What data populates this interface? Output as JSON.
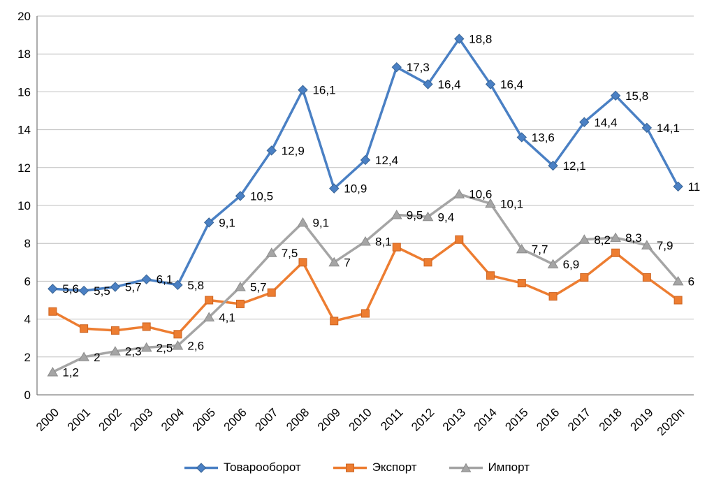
{
  "chart_data": {
    "type": "line",
    "title": "",
    "categories": [
      "2000",
      "2001",
      "2002",
      "2003",
      "2004",
      "2005",
      "2006",
      "2007",
      "2008",
      "2009",
      "2010",
      "2011",
      "2012",
      "2013",
      "2014",
      "2015",
      "2016",
      "2017",
      "2018",
      "2019",
      "2020п"
    ],
    "y_axis": {
      "min": 0,
      "max": 20,
      "step": 2,
      "tick_labels": [
        "0",
        "2",
        "4",
        "6",
        "8",
        "10",
        "12",
        "14",
        "16",
        "18",
        "20"
      ]
    },
    "grid": true,
    "legend_position": "bottom",
    "series": [
      {
        "name": "Товарооборот",
        "marker": "diamond",
        "color": "#4a80c4",
        "marker_border": "#3a6596",
        "show_labels": true,
        "values": [
          5.6,
          5.5,
          5.7,
          6.1,
          5.8,
          9.1,
          10.5,
          12.9,
          16.1,
          10.9,
          12.4,
          17.3,
          16.4,
          18.8,
          16.4,
          13.6,
          12.1,
          14.4,
          15.8,
          14.1,
          11
        ],
        "labels": [
          "5,6",
          "5,5",
          "5,7",
          "6,1",
          "5,8",
          "9,1",
          "10,5",
          "12,9",
          "16,1",
          "10,9",
          "12,4",
          "17,3",
          "16,4",
          "18,8",
          "16,4",
          "13,6",
          "12,1",
          "14,4",
          "15,8",
          "14,1",
          "11"
        ]
      },
      {
        "name": "Экспорт",
        "marker": "square",
        "color": "#ed7d31",
        "marker_border": "#cc6320",
        "show_labels": false,
        "values": [
          4.4,
          3.5,
          3.4,
          3.6,
          3.2,
          5.0,
          4.8,
          5.4,
          7.0,
          3.9,
          4.3,
          7.8,
          7.0,
          8.2,
          6.3,
          5.9,
          5.2,
          6.2,
          7.5,
          6.2,
          5.0
        ],
        "labels": []
      },
      {
        "name": "Импорт",
        "marker": "triangle",
        "color": "#a5a5a5",
        "marker_border": "#8c8c8c",
        "show_labels": true,
        "values": [
          1.2,
          2,
          2.3,
          2.5,
          2.6,
          4.1,
          5.7,
          7.5,
          9.1,
          7,
          8.1,
          9.5,
          9.4,
          10.6,
          10.1,
          7.7,
          6.9,
          8.2,
          8.3,
          7.9,
          6
        ],
        "labels": [
          "1,2",
          "2",
          "2,3",
          "2,5",
          "2,6",
          "4,1",
          "5,7",
          "7,5",
          "9,1",
          "7",
          "8,1",
          "9,5",
          "9,4",
          "10,6",
          "10,1",
          "7,7",
          "6,9",
          "8,2",
          "8,3",
          "7,9",
          "6"
        ]
      }
    ]
  },
  "colors": {
    "background": "#ffffff",
    "gridline": "#bfbfbf",
    "axis": "#808080",
    "tick_text": "#000000",
    "label_text": "#000000"
  },
  "legend": {
    "items": [
      {
        "label": "Товарооборот"
      },
      {
        "label": "Экспорт"
      },
      {
        "label": "Импорт"
      }
    ]
  }
}
